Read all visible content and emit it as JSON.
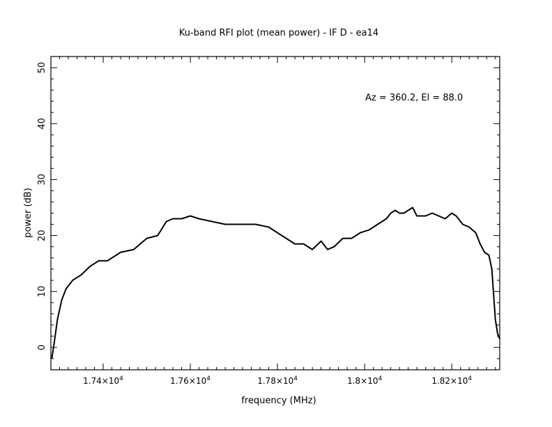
{
  "chart_data": {
    "type": "line",
    "title": "Ku-band RFI plot (mean power) - IF D - ea14",
    "annotation": "Az = 360.2, El = 88.0",
    "xlabel": "frequency (MHz)",
    "ylabel": "power (dB)",
    "xlim": [
      17280,
      18310
    ],
    "ylim": [
      -4,
      52
    ],
    "x_ticks": [
      {
        "value": 17400,
        "mantissa": "1.74",
        "exp": "4"
      },
      {
        "value": 17600,
        "mantissa": "1.76",
        "exp": "4"
      },
      {
        "value": 17800,
        "mantissa": "1.78",
        "exp": "4"
      },
      {
        "value": 18000,
        "mantissa": "1.8",
        "exp": "4"
      },
      {
        "value": 18200,
        "mantissa": "1.82",
        "exp": "4"
      }
    ],
    "y_ticks": [
      0,
      10,
      20,
      30,
      40,
      50
    ],
    "series": [
      {
        "x": [
          17282,
          17288,
          17295,
          17305,
          17315,
          17330,
          17350,
          17370,
          17390,
          17410,
          17440,
          17470,
          17500,
          17525,
          17545,
          17560,
          17580,
          17600,
          17620,
          17650,
          17680,
          17700,
          17720,
          17750,
          17780,
          17800,
          17820,
          17840,
          17860,
          17880,
          17900,
          17915,
          17930,
          17950,
          17970,
          17990,
          18010,
          18030,
          18050,
          18060,
          18070,
          18080,
          18090,
          18100,
          18110,
          18120,
          18140,
          18155,
          18170,
          18185,
          18200,
          18210,
          18225,
          18240,
          18255,
          18265,
          18275,
          18285,
          18292,
          18300,
          18305,
          18310
        ],
        "y": [
          -2,
          1,
          5,
          8.5,
          10.5,
          12,
          13,
          14.5,
          15.5,
          15.5,
          17,
          17.5,
          19.5,
          20,
          22.5,
          23,
          23,
          23.5,
          23,
          22.5,
          22,
          22,
          22,
          22,
          21.5,
          20.5,
          19.5,
          18.5,
          18.5,
          17.5,
          19,
          17.5,
          18,
          19.5,
          19.5,
          20.5,
          21,
          22,
          23,
          24,
          24.5,
          24,
          24,
          24.5,
          25,
          23.5,
          23.5,
          24,
          23.5,
          23,
          24,
          23.5,
          22,
          21.5,
          20.5,
          18.5,
          17,
          16.5,
          14,
          5,
          2.5,
          1.5
        ]
      }
    ]
  }
}
